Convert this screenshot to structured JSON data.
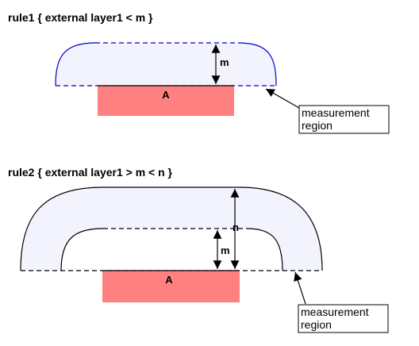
{
  "rule1": {
    "text": "rule1 { external layer1 < m }",
    "shape_label": "A",
    "dimension_m": "m",
    "callout_line1": "measurement",
    "callout_line2": "region"
  },
  "rule2": {
    "text": "rule2 { external layer1 > m < n }",
    "shape_label": "A",
    "dimension_m": "m",
    "dimension_n": "n",
    "callout_line1": "measurement",
    "callout_line2": "region"
  },
  "colors": {
    "shape_fill": "#ff8080",
    "region_fill": "#f2f3fc",
    "rule1_outline": "#0000cc",
    "rule2_outline": "#000000"
  }
}
